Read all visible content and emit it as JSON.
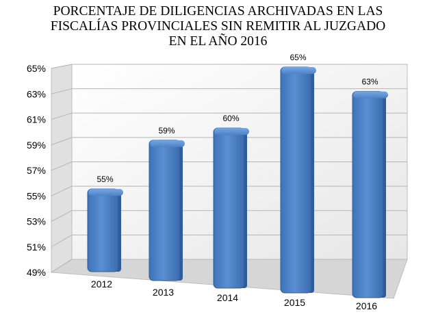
{
  "chart_data": {
    "type": "bar",
    "title_lines": [
      "PORCENTAJE DE DILIGENCIAS ARCHIVADAS EN LAS",
      "FISCALÍAS PROVINCIALES SIN REMITIR AL JUZGADO",
      "EN EL AÑO 2016"
    ],
    "categories": [
      "2012",
      "2013",
      "2014",
      "2015",
      "2016"
    ],
    "values": [
      55,
      59,
      60,
      65,
      63
    ],
    "data_labels": [
      "55%",
      "59%",
      "60%",
      "65%",
      "63%"
    ],
    "yticks": [
      "49%",
      "51%",
      "53%",
      "55%",
      "57%",
      "59%",
      "61%",
      "63%",
      "65%"
    ],
    "ylim": [
      49,
      65
    ],
    "grid": true,
    "bar_color": "#4a7ec4",
    "bar_shade_color": "#2f5d9c"
  }
}
